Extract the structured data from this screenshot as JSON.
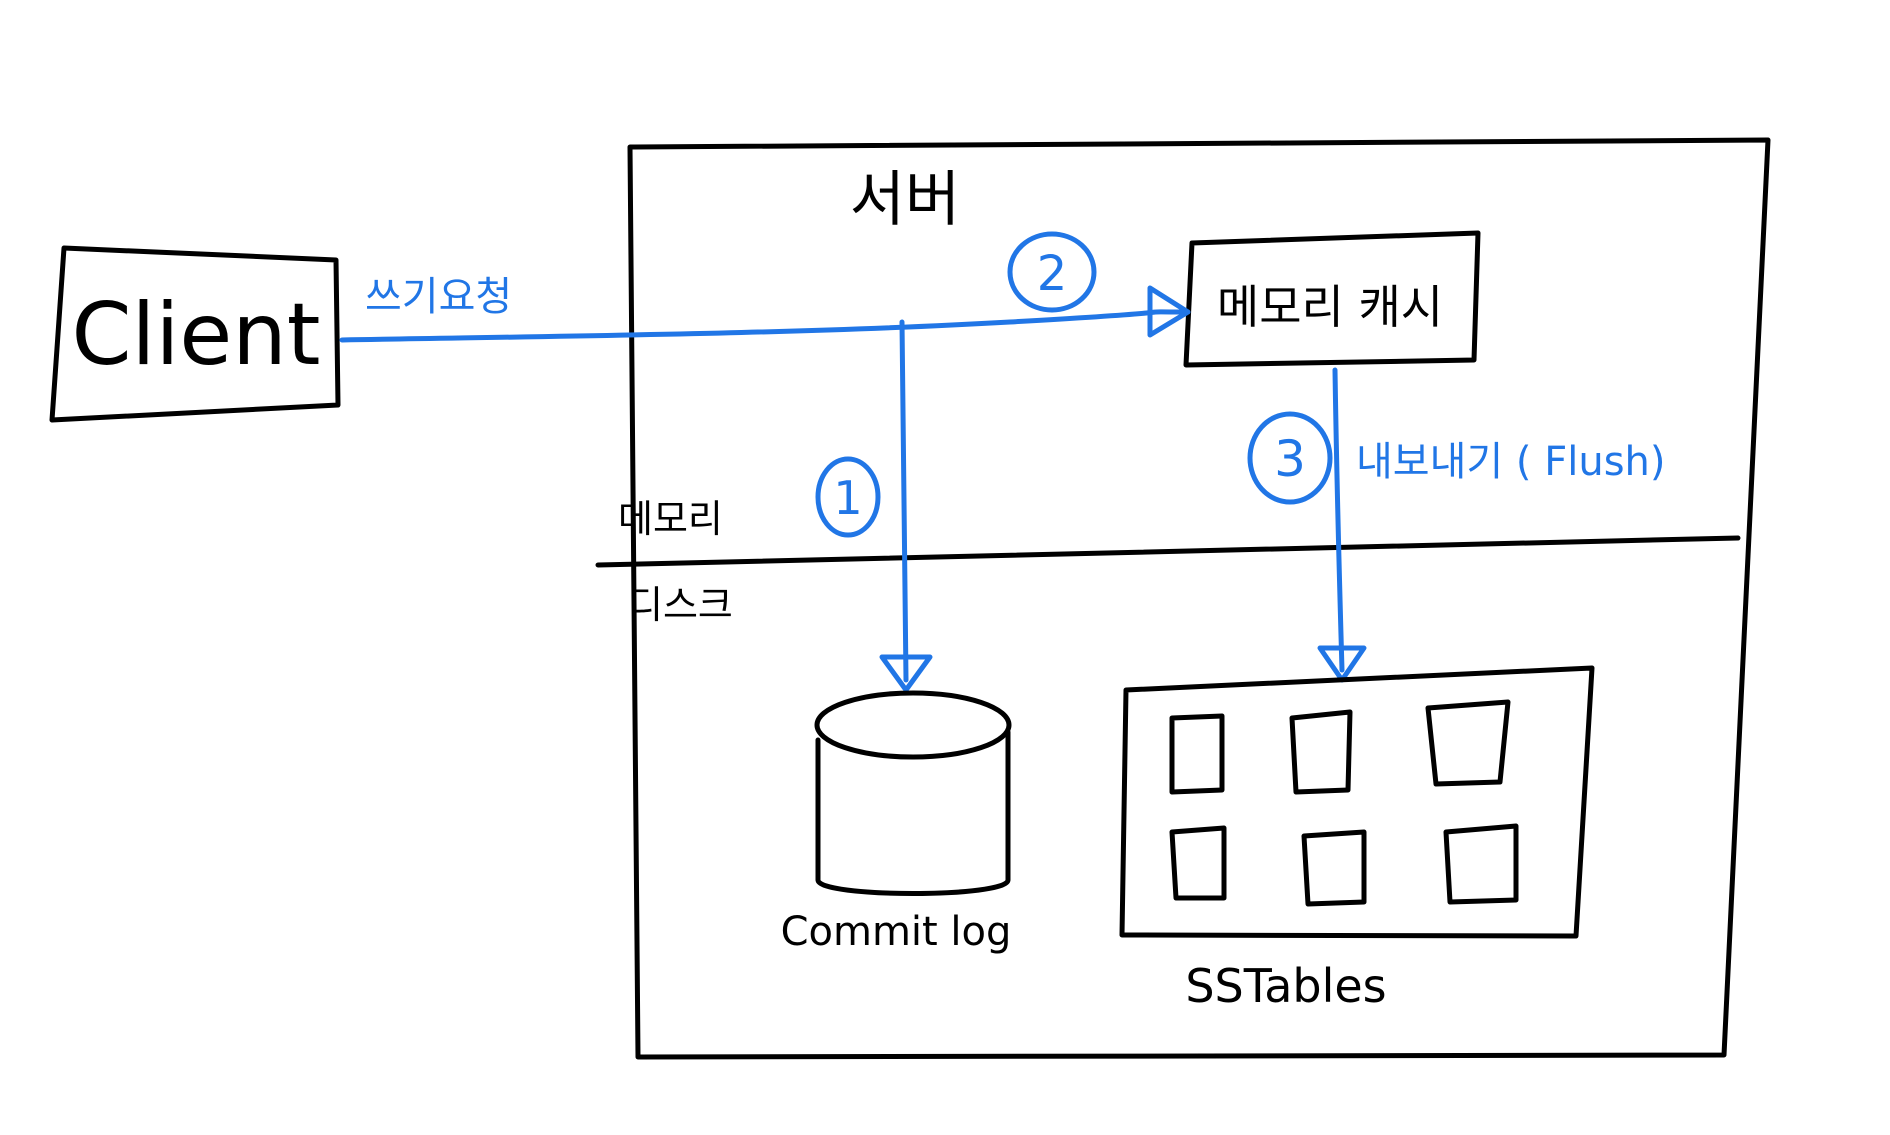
{
  "colors": {
    "ink": "#000000",
    "accent": "#2176e6",
    "background": "#ffffff"
  },
  "client": {
    "label": "Client"
  },
  "server": {
    "title": "서버",
    "memory_label": "메모리",
    "disk_label": "디스크"
  },
  "memory_cache": {
    "label": "메모리 캐시"
  },
  "write_request": {
    "label": "쓰기요청"
  },
  "steps": {
    "one": "1",
    "two": "2",
    "three": "3"
  },
  "flush": {
    "label": "내보내기 ( Flush)"
  },
  "commit_log": {
    "label": "Commit log"
  },
  "sstables": {
    "label": "SSTables"
  }
}
